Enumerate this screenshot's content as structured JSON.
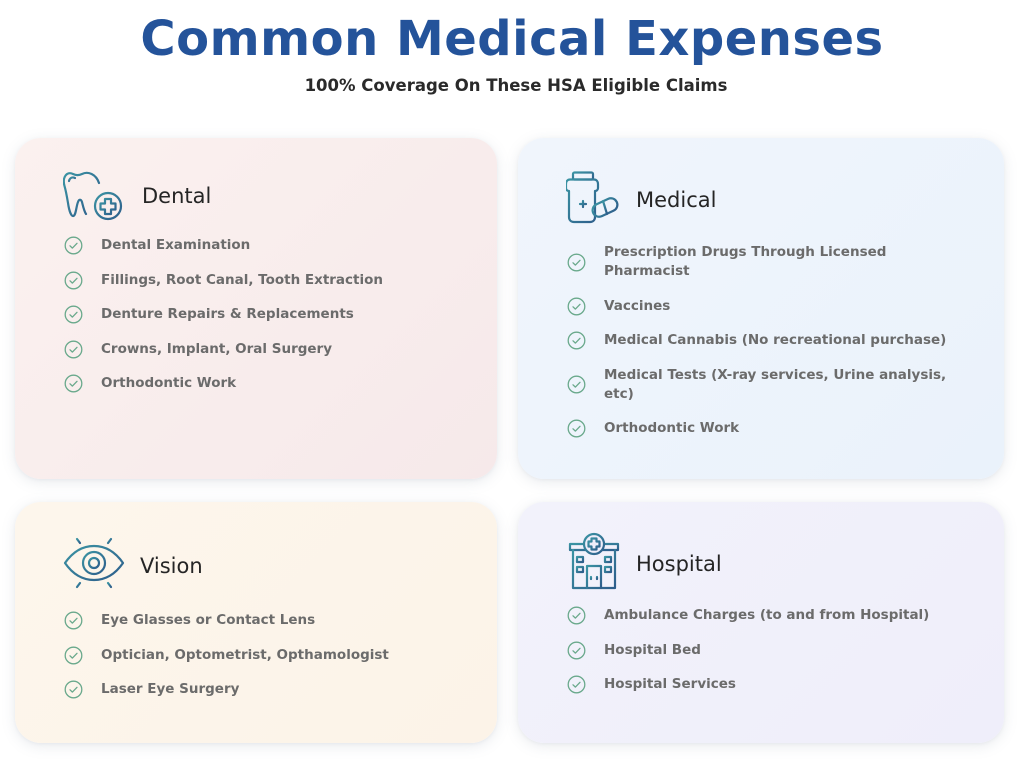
{
  "header": {
    "title": "Common Medical Expenses",
    "subtitle": "100% Coverage On These HSA Eligible Claims"
  },
  "colors": {
    "title": "#24539a",
    "icon_stroke_start": "#3a8ea0",
    "icon_stroke_end": "#2f5f8c",
    "check": "#6aa98c"
  },
  "cards": {
    "dental": {
      "title": "Dental",
      "icon": "tooth-plus-icon",
      "items": [
        "Dental Examination",
        "Fillings, Root Canal, Tooth Extraction",
        "Denture Repairs & Replacements",
        "Crowns, Implant, Oral Surgery",
        "Orthodontic Work"
      ]
    },
    "medical": {
      "title": "Medical",
      "icon": "medicine-bottle-icon",
      "items": [
        "Prescription Drugs Through Licensed Pharmacist",
        "Vaccines",
        "Medical Cannabis (No recreational purchase)",
        "Medical Tests (X-ray services, Urine analysis, etc)",
        "Orthodontic Work"
      ]
    },
    "vision": {
      "title": "Vision",
      "icon": "eye-icon",
      "items": [
        "Eye Glasses or Contact Lens",
        "Optician, Optometrist, Opthamologist",
        "Laser Eye Surgery"
      ]
    },
    "hospital": {
      "title": "Hospital",
      "icon": "hospital-building-icon",
      "items": [
        "Ambulance Charges (to and from Hospital)",
        "Hospital Bed",
        "Hospital Services"
      ]
    }
  }
}
